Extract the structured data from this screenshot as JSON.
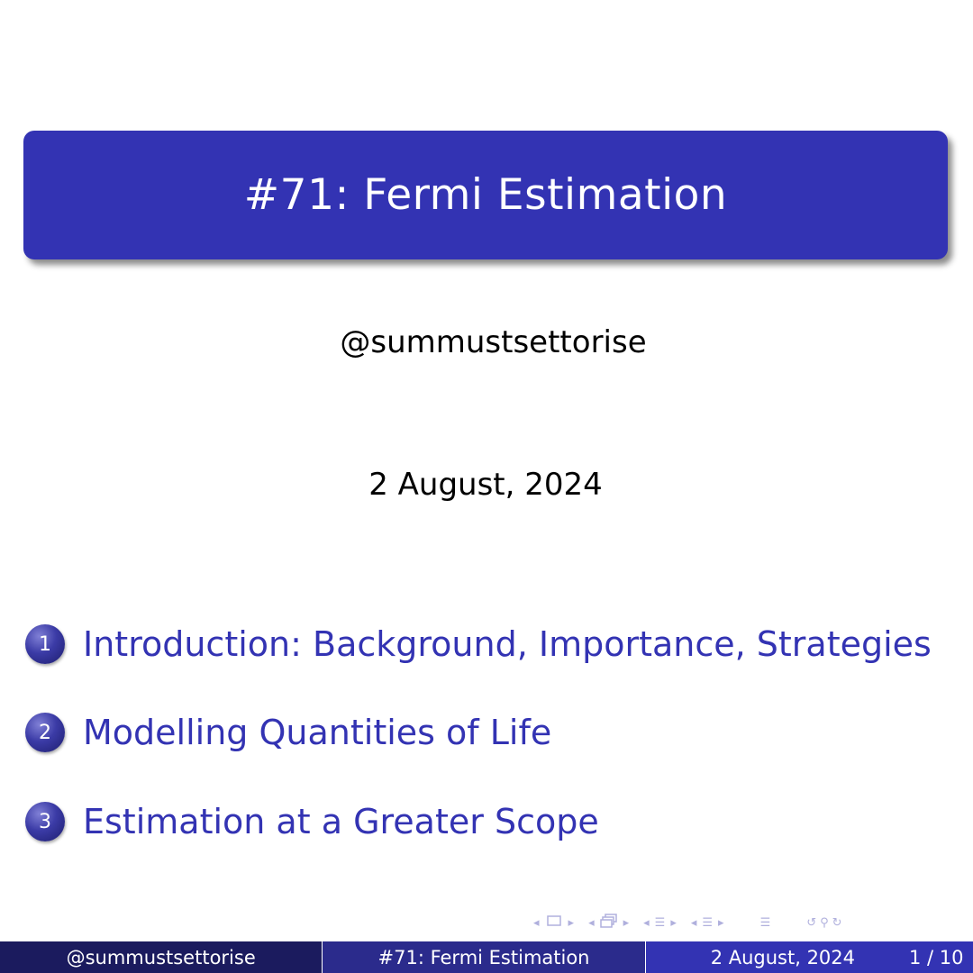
{
  "slide": {
    "title": "#71: Fermi Estimation",
    "author": "@summustsettorise",
    "date": "2 August, 2024"
  },
  "toc": [
    {
      "number": "1",
      "label": "Introduction: Background, Importance, Strategies"
    },
    {
      "number": "2",
      "label": "Modelling Quantities of Life"
    },
    {
      "number": "3",
      "label": "Estimation at a Greater Scope"
    }
  ],
  "navigation": {
    "icons": [
      "frame-prev-icon",
      "frame-icon",
      "frame-next-icon",
      "subsection-prev-icon",
      "subsection-icon",
      "subsection-next-icon",
      "section-prev-icon",
      "section-icon",
      "section-next-icon",
      "document-prev-icon",
      "document-icon",
      "document-next-icon",
      "toc-icon",
      "back-icon",
      "search-icon",
      "forward-icon"
    ]
  },
  "footer": {
    "author": "@summustsettorise",
    "title": "#71: Fermi Estimation",
    "date": "2 August, 2024",
    "page": "1 / 10"
  },
  "colors": {
    "accent": "#3333b3",
    "footer_dark": "#1b1b5e",
    "footer_mid": "#2b2b8c",
    "footer_light": "#3333b3",
    "nav_symbols": "#b0b0dd"
  }
}
